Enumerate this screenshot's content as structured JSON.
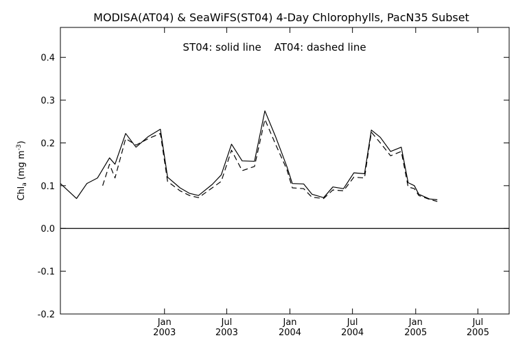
{
  "chart_data": {
    "type": "line",
    "title": "MODISA(AT04) & SeaWiFS(ST04) 4-Day Chlorophylls, PacN35 Subset",
    "annotation": "ST04: solid line    AT04: dashed line",
    "ylabel_main": "Chl",
    "ylabel_sub": "a",
    "ylabel_unit": "(mg m",
    "ylabel_exp": "-3",
    "ylabel_close": ")",
    "ylim": [
      -0.2,
      0.47
    ],
    "xlim": [
      "2002-03-04",
      "2005-09-30"
    ],
    "y_ticks": [
      {
        "value": -0.2,
        "label": "-0.2"
      },
      {
        "value": -0.1,
        "label": "-0.1"
      },
      {
        "value": 0.0,
        "label": "0.0"
      },
      {
        "value": 0.1,
        "label": "0.1"
      },
      {
        "value": 0.2,
        "label": "0.2"
      },
      {
        "value": 0.3,
        "label": "0.3"
      },
      {
        "value": 0.4,
        "label": "0.4"
      }
    ],
    "x_ticks": [
      {
        "date": "2003-01-01",
        "month": "Jan",
        "year": "2003"
      },
      {
        "date": "2003-07-01",
        "month": "Jul",
        "year": "2003"
      },
      {
        "date": "2004-01-01",
        "month": "Jan",
        "year": "2004"
      },
      {
        "date": "2004-07-01",
        "month": "Jul",
        "year": "2004"
      },
      {
        "date": "2005-01-01",
        "month": "Jan",
        "year": "2005"
      },
      {
        "date": "2005-07-01",
        "month": "Jul",
        "year": "2005"
      }
    ],
    "reference_line": 0.0,
    "line_color": "#000000",
    "series": [
      {
        "name": "ST04",
        "style": "solid",
        "x": [
          "2002-03-04",
          "2002-04-20",
          "2002-05-20",
          "2002-06-20",
          "2002-07-25",
          "2002-08-10",
          "2002-09-10",
          "2002-10-10",
          "2002-11-15",
          "2002-12-20",
          "2003-01-10",
          "2003-02-15",
          "2003-03-15",
          "2003-04-10",
          "2003-05-20",
          "2003-06-15",
          "2003-07-15",
          "2003-08-15",
          "2003-09-20",
          "2003-10-20",
          "2003-11-20",
          "2003-12-23",
          "2004-01-08",
          "2004-02-10",
          "2004-03-05",
          "2004-04-08",
          "2004-05-05",
          "2004-06-05",
          "2004-07-05",
          "2004-08-05",
          "2004-08-25",
          "2004-09-20",
          "2004-10-20",
          "2004-11-20",
          "2004-12-10",
          "2004-12-28",
          "2005-01-10",
          "2005-02-10",
          "2005-03-05",
          "2005-04-05",
          "2005-05-01",
          "2005-05-25",
          "2005-06-20",
          "2005-07-20",
          "2005-08-20",
          "2005-09-15",
          "2005-09-30"
        ],
        "y": [
          0.105,
          0.07,
          0.105,
          0.118,
          0.165,
          0.15,
          0.222,
          0.19,
          0.215,
          0.232,
          0.12,
          0.095,
          0.082,
          0.077,
          0.103,
          0.125,
          0.197,
          0.158,
          0.157,
          0.275,
          0.215,
          0.145,
          0.105,
          0.104,
          0.08,
          0.072,
          0.097,
          0.093,
          0.13,
          0.128,
          0.23,
          0.213,
          0.18,
          0.19,
          0.107,
          0.1,
          0.08,
          0.069,
          0.067,
          null,
          null,
          null,
          null,
          null,
          null,
          null,
          null
        ]
      },
      {
        "name": "AT04",
        "style": "dashed",
        "x": [
          "2002-07-05",
          "2002-07-25",
          "2002-08-10",
          "2002-09-10",
          "2002-10-10",
          "2002-11-15",
          "2002-12-20",
          "2003-01-10",
          "2003-02-15",
          "2003-03-15",
          "2003-04-10",
          "2003-05-20",
          "2003-06-15",
          "2003-07-15",
          "2003-08-15",
          "2003-09-20",
          "2003-10-20",
          "2003-11-20",
          "2003-12-23",
          "2004-01-08",
          "2004-02-10",
          "2004-03-05",
          "2004-04-08",
          "2004-05-05",
          "2004-06-05",
          "2004-07-05",
          "2004-08-05",
          "2004-08-25",
          "2004-09-20",
          "2004-10-20",
          "2004-11-20",
          "2004-12-10",
          "2004-12-28",
          "2005-01-10",
          "2005-02-10",
          "2005-03-05"
        ],
        "y": [
          0.1,
          0.15,
          0.118,
          0.21,
          0.195,
          0.21,
          0.222,
          0.11,
          0.088,
          0.077,
          0.072,
          0.095,
          0.11,
          0.183,
          0.135,
          0.145,
          0.255,
          0.197,
          0.138,
          0.095,
          0.093,
          0.073,
          0.07,
          0.09,
          0.088,
          0.12,
          0.118,
          0.225,
          0.2,
          0.17,
          0.18,
          0.097,
          0.093,
          0.077,
          0.068,
          0.063
        ]
      }
    ]
  }
}
